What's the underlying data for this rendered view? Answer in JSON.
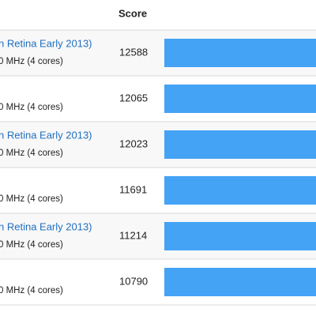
{
  "table": {
    "header": "Score",
    "rows": [
      {
        "name": "n Retina Early 2013)",
        "detail": "0 MHz (4 cores)",
        "score": 12588
      },
      {
        "detail": "0 MHz (4 cores)",
        "score": 12065
      },
      {
        "name": "n Retina Early 2013)",
        "detail": "0 MHz (4 cores)",
        "score": 12023
      },
      {
        "detail": "0 MHz (4 cores)",
        "score": 11691
      },
      {
        "name": "n Retina Early 2013)",
        "detail": "0 MHz (4 cores)",
        "score": 11214
      },
      {
        "detail": "0 MHz (4 cores)",
        "score": 10790
      }
    ]
  }
}
